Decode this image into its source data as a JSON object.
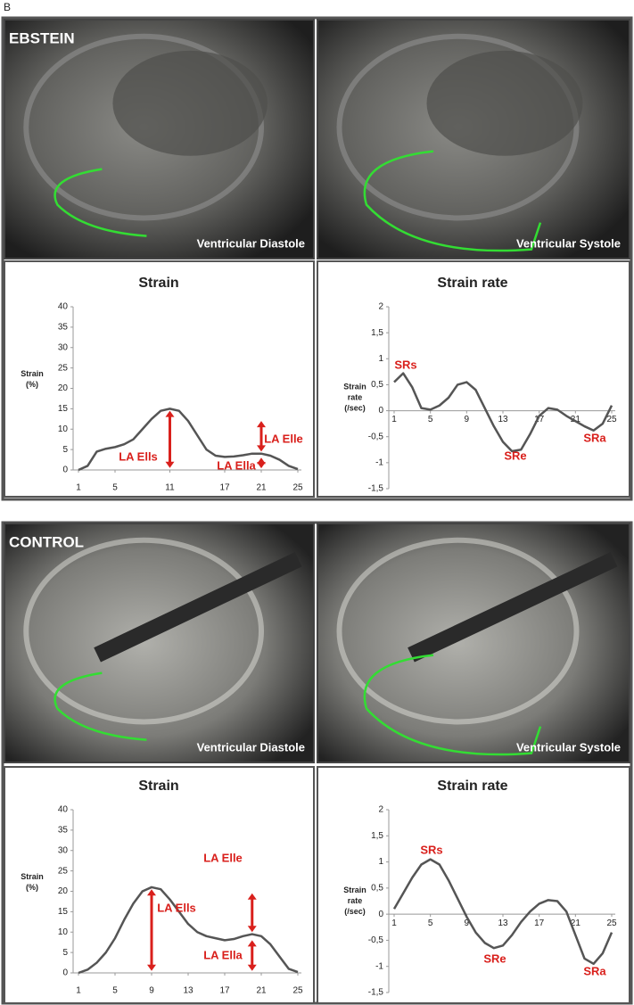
{
  "figure_label": "B",
  "groups": [
    {
      "name": "EBSTEIN",
      "captions": [
        "Ventricular  Diastole",
        "Ventricular Systole"
      ]
    },
    {
      "name": "CONTROL",
      "captions": [
        "Ventricular Diastole",
        "Ventricular Systole"
      ]
    }
  ],
  "chart_data": [
    {
      "type": "line",
      "title": "Strain",
      "ylabel": [
        "Strain",
        "(%)"
      ],
      "x": [
        1,
        2,
        3,
        4,
        5,
        6,
        7,
        8,
        9,
        10,
        11,
        12,
        13,
        14,
        15,
        16,
        17,
        18,
        19,
        20,
        21,
        22,
        23,
        24,
        25
      ],
      "series": [
        {
          "color": "#555555",
          "values": [
            0,
            1,
            4.5,
            5.2,
            5.6,
            6.3,
            7.5,
            10,
            12.5,
            14.5,
            15,
            14.5,
            12,
            8.5,
            5,
            3.5,
            3.2,
            3.3,
            3.6,
            4,
            4,
            3.5,
            2.5,
            1,
            0.2
          ]
        }
      ],
      "xlim": [
        1,
        25
      ],
      "xticks": [
        1,
        5,
        11,
        17,
        21,
        25
      ],
      "ylim": [
        0,
        40
      ],
      "yticks": [
        0,
        5,
        10,
        15,
        20,
        25,
        30,
        35,
        40
      ],
      "annotations": [
        "LA Ells",
        "LA Ella",
        "LA Elle"
      ],
      "annotation_color": "#d9201c"
    },
    {
      "type": "line",
      "title": "Strain rate",
      "ylabel": [
        "Strain",
        "rate",
        "(/sec)"
      ],
      "x": [
        1,
        2,
        3,
        4,
        5,
        6,
        7,
        8,
        9,
        10,
        11,
        12,
        13,
        14,
        15,
        16,
        17,
        18,
        19,
        20,
        21,
        22,
        23,
        24,
        25
      ],
      "series": [
        {
          "color": "#555555",
          "values": [
            0.55,
            0.72,
            0.45,
            0.05,
            0.02,
            0.1,
            0.25,
            0.5,
            0.55,
            0.4,
            0.05,
            -0.3,
            -0.6,
            -0.78,
            -0.75,
            -0.45,
            -0.1,
            0.05,
            0.02,
            -0.1,
            -0.2,
            -0.3,
            -0.38,
            -0.25,
            0.1
          ]
        }
      ],
      "xlim": [
        1,
        25
      ],
      "xticks": [
        1,
        5,
        9,
        13,
        17,
        21,
        25
      ],
      "ylim": [
        -1.5,
        2
      ],
      "yticks": [
        {
          "value": -1.5,
          "label": "-1,5"
        },
        -1,
        {
          "value": -0.5,
          "label": "-0,5"
        },
        0,
        {
          "value": 0.5,
          "label": "0,5"
        },
        1,
        {
          "value": 1.5,
          "label": "1,5"
        },
        2
      ],
      "annotations": [
        "SRs",
        "SRe",
        "SRa"
      ],
      "annotation_color": "#d9201c"
    },
    {
      "type": "line",
      "title": "Strain",
      "ylabel": [
        "Strain",
        "(%)"
      ],
      "x": [
        1,
        2,
        3,
        4,
        5,
        6,
        7,
        8,
        9,
        10,
        11,
        12,
        13,
        14,
        15,
        16,
        17,
        18,
        19,
        20,
        21,
        22,
        23,
        24,
        25
      ],
      "series": [
        {
          "color": "#555555",
          "values": [
            0,
            0.8,
            2.5,
            5,
            8.5,
            13,
            17,
            20,
            21,
            20.5,
            18,
            15,
            12,
            10,
            9,
            8.5,
            8,
            8.3,
            9,
            9.5,
            9,
            7,
            4,
            1,
            0.2
          ]
        }
      ],
      "xlim": [
        1,
        25
      ],
      "xticks": [
        1,
        5,
        9,
        13,
        17,
        21,
        25
      ],
      "ylim": [
        0,
        40
      ],
      "yticks": [
        0,
        5,
        10,
        15,
        20,
        25,
        30,
        35,
        40
      ],
      "annotations": [
        "LA Elle",
        "LA Ells",
        "LA Ella"
      ],
      "annotation_color": "#d9201c"
    },
    {
      "type": "line",
      "title": "Strain rate",
      "ylabel": [
        "Strain",
        "rate",
        "(/sec)"
      ],
      "x": [
        1,
        2,
        3,
        4,
        5,
        6,
        7,
        8,
        9,
        10,
        11,
        12,
        13,
        14,
        15,
        16,
        17,
        18,
        19,
        20,
        21,
        22,
        23,
        24,
        25
      ],
      "series": [
        {
          "color": "#555555",
          "values": [
            0.1,
            0.4,
            0.7,
            0.95,
            1.05,
            0.95,
            0.65,
            0.3,
            -0.05,
            -0.35,
            -0.55,
            -0.65,
            -0.6,
            -0.4,
            -0.15,
            0.05,
            0.2,
            0.27,
            0.25,
            0.05,
            -0.4,
            -0.85,
            -0.95,
            -0.75,
            -0.35
          ]
        }
      ],
      "xlim": [
        1,
        25
      ],
      "xticks": [
        1,
        5,
        9,
        13,
        17,
        21,
        25
      ],
      "ylim": [
        -1.5,
        2
      ],
      "yticks": [
        {
          "value": -1.5,
          "label": "-1,5"
        },
        -1,
        {
          "value": -0.5,
          "label": "-0,5"
        },
        0,
        {
          "value": 0.5,
          "label": "0,5"
        },
        1,
        {
          "value": 1.5,
          "label": "1,5"
        },
        2
      ],
      "annotations": [
        "SRs",
        "SRe",
        "SRa"
      ],
      "annotation_color": "#d9201c"
    }
  ]
}
